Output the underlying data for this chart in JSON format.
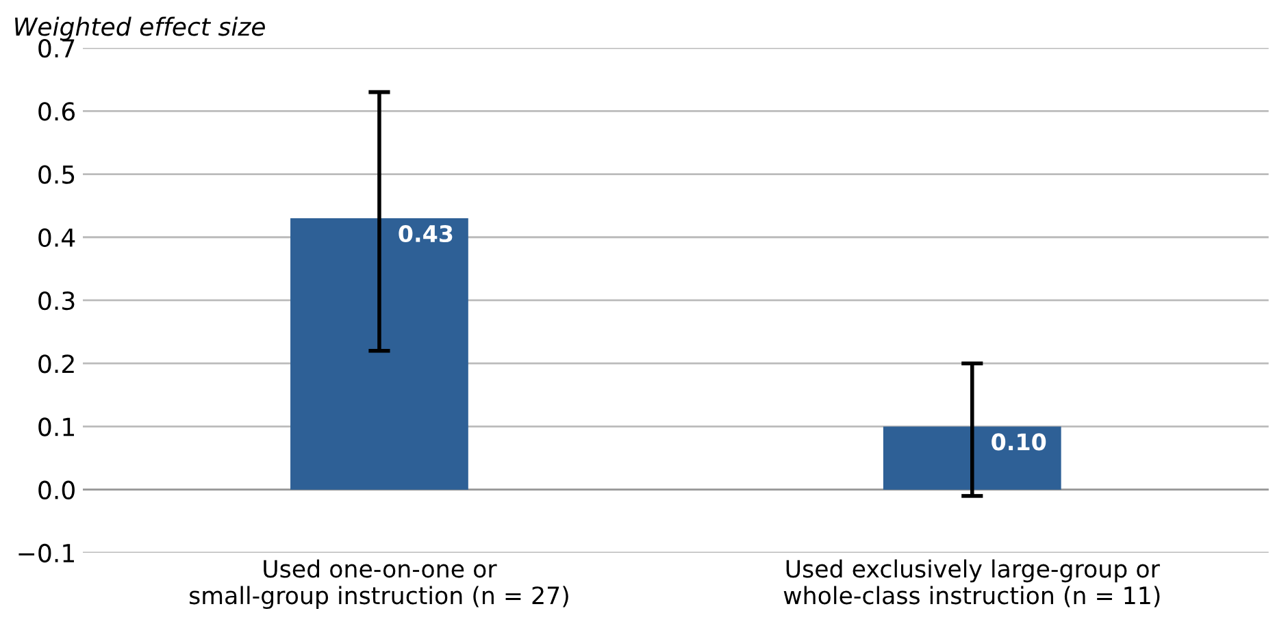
{
  "chart_data": {
    "type": "bar",
    "ylabel": "Weighted effect size",
    "categories": [
      "Used one-on-one or\nsmall-group instruction (n = 27)",
      "Used exclusively large-group or\nwhole-class instruction (n = 11)"
    ],
    "values": [
      0.43,
      0.1
    ],
    "color": "#2e6096",
    "errors": [
      [
        0.22,
        0.63
      ],
      [
        -0.01,
        0.2
      ]
    ],
    "value_labels": [
      "0.43",
      "0.10"
    ],
    "ylim": [
      -0.1,
      0.7
    ],
    "yticks": [
      {
        "value": -0.1,
        "label": "−0.1"
      },
      {
        "value": 0.0,
        "label": "0.0"
      },
      0.1,
      0.2,
      0.3,
      0.4,
      0.5,
      0.6,
      0.7
    ],
    "grid": "y",
    "legend": false
  }
}
